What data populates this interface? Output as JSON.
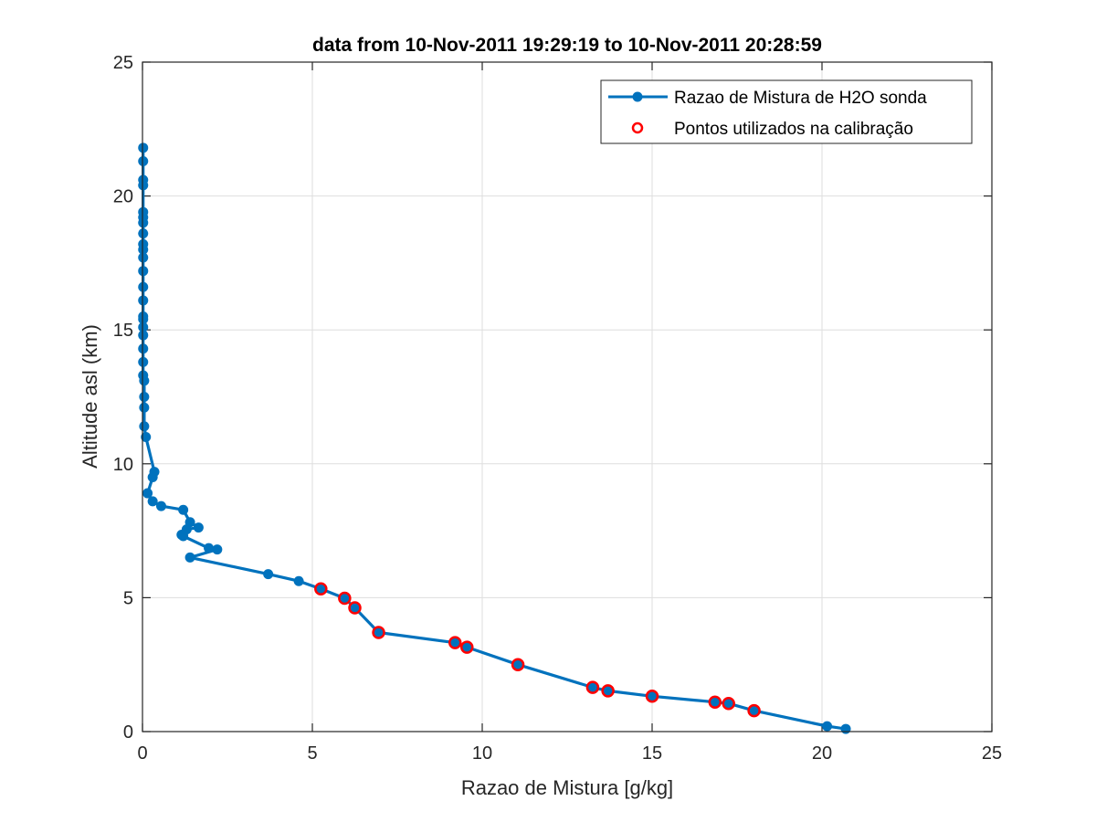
{
  "chart_data": {
    "type": "line",
    "title": "data from 10-Nov-2011 19:29:19 to 10-Nov-2011 20:28:59",
    "xlabel": "Razao de Mistura [g/kg]",
    "ylabel": "Altitude asl (km)",
    "xlim": [
      0,
      25
    ],
    "ylim": [
      0,
      25
    ],
    "xticks": [
      0,
      5,
      10,
      15,
      20,
      25
    ],
    "yticks": [
      0,
      5,
      10,
      15,
      20,
      25
    ],
    "grid": true,
    "legend_position": "top-right",
    "series": [
      {
        "name": "Razao de Mistura de H2O sonda",
        "style": "line-with-dot-markers",
        "color": "#0072BD",
        "points": [
          [
            20.7,
            0.1
          ],
          [
            20.15,
            0.2
          ],
          [
            18.0,
            0.78
          ],
          [
            17.25,
            1.05
          ],
          [
            16.85,
            1.1
          ],
          [
            15.0,
            1.32
          ],
          [
            13.7,
            1.52
          ],
          [
            13.25,
            1.65
          ],
          [
            11.05,
            2.5
          ],
          [
            9.55,
            3.15
          ],
          [
            9.2,
            3.32
          ],
          [
            6.95,
            3.7
          ],
          [
            6.25,
            4.62
          ],
          [
            5.95,
            4.98
          ],
          [
            5.25,
            5.33
          ],
          [
            4.6,
            5.62
          ],
          [
            3.7,
            5.88
          ],
          [
            1.4,
            6.5
          ],
          [
            2.2,
            6.8
          ],
          [
            1.95,
            6.85
          ],
          [
            1.2,
            7.3
          ],
          [
            1.15,
            7.35
          ],
          [
            1.3,
            7.55
          ],
          [
            1.65,
            7.62
          ],
          [
            1.4,
            7.82
          ],
          [
            1.2,
            8.28
          ],
          [
            0.55,
            8.42
          ],
          [
            0.3,
            8.6
          ],
          [
            0.15,
            8.9
          ],
          [
            0.3,
            9.5
          ],
          [
            0.35,
            9.7
          ],
          [
            0.1,
            11.0
          ],
          [
            0.05,
            11.4
          ],
          [
            0.05,
            12.1
          ],
          [
            0.05,
            12.5
          ],
          [
            0.05,
            13.1
          ],
          [
            0.02,
            13.3
          ],
          [
            0.02,
            13.8
          ],
          [
            0.02,
            14.3
          ],
          [
            0.02,
            14.8
          ],
          [
            0.02,
            15.1
          ],
          [
            0.02,
            15.4
          ],
          [
            0.02,
            15.5
          ],
          [
            0.02,
            16.1
          ],
          [
            0.02,
            16.6
          ],
          [
            0.02,
            17.2
          ],
          [
            0.02,
            17.7
          ],
          [
            0.02,
            18.0
          ],
          [
            0.02,
            18.2
          ],
          [
            0.02,
            18.6
          ],
          [
            0.02,
            19.0
          ],
          [
            0.02,
            19.2
          ],
          [
            0.02,
            19.4
          ],
          [
            0.02,
            20.4
          ],
          [
            0.02,
            20.6
          ],
          [
            0.02,
            21.3
          ],
          [
            0.02,
            21.8
          ]
        ]
      },
      {
        "name": "Pontos utilizados na calibração",
        "style": "open-circle-markers",
        "color": "#FF0000",
        "points": [
          [
            18.0,
            0.78
          ],
          [
            17.25,
            1.05
          ],
          [
            16.85,
            1.1
          ],
          [
            15.0,
            1.32
          ],
          [
            13.7,
            1.52
          ],
          [
            13.25,
            1.65
          ],
          [
            11.05,
            2.5
          ],
          [
            9.55,
            3.15
          ],
          [
            9.2,
            3.32
          ],
          [
            6.95,
            3.7
          ],
          [
            6.25,
            4.62
          ],
          [
            5.95,
            4.98
          ],
          [
            5.25,
            5.33
          ]
        ]
      }
    ]
  }
}
